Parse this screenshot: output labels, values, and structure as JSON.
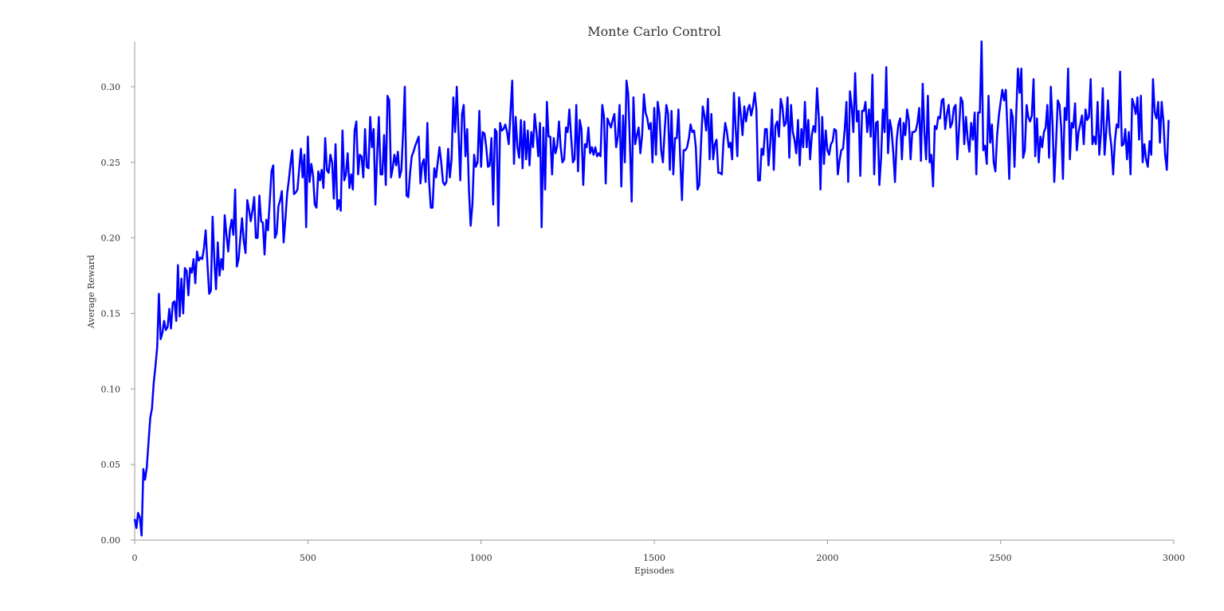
{
  "chart_data": {
    "type": "line",
    "title": "Monte Carlo Control",
    "xlabel": "Episodes",
    "ylabel": "Average Reward",
    "xlim": [
      0,
      3000
    ],
    "ylim": [
      0.0,
      0.33
    ],
    "xticks": [
      0,
      500,
      1000,
      1500,
      2000,
      2500,
      3000
    ],
    "xtick_labels": [
      "0",
      "500",
      "1000",
      "1500",
      "2000",
      "2500",
      "3000"
    ],
    "yticks": [
      0.0,
      0.05,
      0.1,
      0.15,
      0.2,
      0.25,
      0.3
    ],
    "ytick_labels": [
      "0.00",
      "0.05",
      "0.10",
      "0.15",
      "0.20",
      "0.25",
      "0.30"
    ],
    "grid": false,
    "legend": "none",
    "line_color": "#0000ff",
    "axis_color": "#999999",
    "series": [
      {
        "x_start": 0,
        "x_step": 5,
        "values": [
          0.014,
          0.008,
          0.018,
          0.015,
          0.003,
          0.047,
          0.04,
          0.048,
          0.065,
          0.081,
          0.087,
          0.104,
          0.115,
          0.128,
          0.163,
          0.133,
          0.137,
          0.145,
          0.139,
          0.141,
          0.153,
          0.14,
          0.157,
          0.158,
          0.145,
          0.182,
          0.148,
          0.173,
          0.15,
          0.18,
          0.178,
          0.162,
          0.18,
          0.177,
          0.186,
          0.17,
          0.191,
          0.185,
          0.187,
          0.186,
          0.193,
          0.205,
          0.183,
          0.163,
          0.165,
          0.214,
          0.185,
          0.166,
          0.197,
          0.175,
          0.186,
          0.179,
          0.215,
          0.202,
          0.191,
          0.205,
          0.212,
          0.202,
          0.232,
          0.181,
          0.186,
          0.2,
          0.213,
          0.198,
          0.19,
          0.225,
          0.219,
          0.211,
          0.218,
          0.227,
          0.2,
          0.2,
          0.228,
          0.211,
          0.21,
          0.189,
          0.212,
          0.205,
          0.224,
          0.244,
          0.248,
          0.2,
          0.203,
          0.221,
          0.225,
          0.231,
          0.197,
          0.212,
          0.229,
          0.238,
          0.249,
          0.258,
          0.229,
          0.23,
          0.232,
          0.246,
          0.259,
          0.24,
          0.255,
          0.207,
          0.267,
          0.237,
          0.249,
          0.241,
          0.222,
          0.22,
          0.244,
          0.238,
          0.245,
          0.233,
          0.266,
          0.245,
          0.243,
          0.255,
          0.25,
          0.226,
          0.262,
          0.219,
          0.225,
          0.218,
          0.271,
          0.238,
          0.242,
          0.256,
          0.233,
          0.242,
          0.232,
          0.271,
          0.277,
          0.242,
          0.255,
          0.254,
          0.24,
          0.272,
          0.247,
          0.246,
          0.28,
          0.26,
          0.272,
          0.222,
          0.255,
          0.28,
          0.242,
          0.242,
          0.268,
          0.235,
          0.294,
          0.291,
          0.24,
          0.246,
          0.255,
          0.248,
          0.257,
          0.24,
          0.245,
          0.27,
          0.3,
          0.228,
          0.227,
          0.243,
          0.254,
          0.257,
          0.261,
          0.264,
          0.267,
          0.236,
          0.249,
          0.252,
          0.237,
          0.276,
          0.237,
          0.22,
          0.22,
          0.246,
          0.24,
          0.25,
          0.26,
          0.25,
          0.237,
          0.235,
          0.237,
          0.259,
          0.24,
          0.252,
          0.293,
          0.27,
          0.3,
          0.27,
          0.238,
          0.282,
          0.288,
          0.254,
          0.272,
          0.232,
          0.208,
          0.222,
          0.255,
          0.247,
          0.25,
          0.284,
          0.247,
          0.27,
          0.269,
          0.26,
          0.247,
          0.248,
          0.266,
          0.222,
          0.272,
          0.27,
          0.208,
          0.276,
          0.271,
          0.272,
          0.275,
          0.27,
          0.262,
          0.283,
          0.304,
          0.249,
          0.28,
          0.26,
          0.253,
          0.278,
          0.246,
          0.277,
          0.252,
          0.271,
          0.248,
          0.27,
          0.26,
          0.282,
          0.27,
          0.254,
          0.276,
          0.207,
          0.273,
          0.232,
          0.29,
          0.267,
          0.267,
          0.242,
          0.266,
          0.256,
          0.261,
          0.277,
          0.26,
          0.25,
          0.252,
          0.273,
          0.27,
          0.285,
          0.267,
          0.25,
          0.252,
          0.288,
          0.244,
          0.278,
          0.272,
          0.235,
          0.262,
          0.26,
          0.273,
          0.256,
          0.26,
          0.255,
          0.26,
          0.254,
          0.256,
          0.254,
          0.288,
          0.28,
          0.236,
          0.279,
          0.276,
          0.273,
          0.278,
          0.282,
          0.26,
          0.267,
          0.288,
          0.234,
          0.281,
          0.25,
          0.304,
          0.295,
          0.26,
          0.224,
          0.293,
          0.262,
          0.268,
          0.273,
          0.256,
          0.268,
          0.295,
          0.283,
          0.279,
          0.272,
          0.276,
          0.25,
          0.286,
          0.255,
          0.29,
          0.282,
          0.258,
          0.25,
          0.27,
          0.288,
          0.282,
          0.245,
          0.284,
          0.242,
          0.266,
          0.266,
          0.285,
          0.253,
          0.225,
          0.258,
          0.258,
          0.26,
          0.266,
          0.275,
          0.27,
          0.271,
          0.26,
          0.232,
          0.235,
          0.262,
          0.287,
          0.281,
          0.271,
          0.292,
          0.252,
          0.282,
          0.252,
          0.262,
          0.265,
          0.243,
          0.243,
          0.242,
          0.264,
          0.276,
          0.27,
          0.26,
          0.263,
          0.252,
          0.296,
          0.273,
          0.254,
          0.293,
          0.281,
          0.268,
          0.287,
          0.277,
          0.285,
          0.288,
          0.281,
          0.287,
          0.296,
          0.285,
          0.238,
          0.238,
          0.259,
          0.255,
          0.272,
          0.272,
          0.248,
          0.262,
          0.285,
          0.245,
          0.274,
          0.277,
          0.267,
          0.292,
          0.287,
          0.274,
          0.276,
          0.293,
          0.253,
          0.288,
          0.27,
          0.265,
          0.256,
          0.278,
          0.248,
          0.272,
          0.26,
          0.29,
          0.26,
          0.278,
          0.252,
          0.268,
          0.274,
          0.27,
          0.299,
          0.28,
          0.232,
          0.28,
          0.249,
          0.271,
          0.258,
          0.255,
          0.262,
          0.264,
          0.272,
          0.271,
          0.242,
          0.251,
          0.258,
          0.259,
          0.272,
          0.29,
          0.237,
          0.297,
          0.287,
          0.27,
          0.309,
          0.277,
          0.284,
          0.241,
          0.284,
          0.284,
          0.29,
          0.27,
          0.285,
          0.267,
          0.308,
          0.242,
          0.276,
          0.277,
          0.235,
          0.253,
          0.285,
          0.27,
          0.313,
          0.256,
          0.278,
          0.272,
          0.257,
          0.237,
          0.265,
          0.275,
          0.279,
          0.252,
          0.276,
          0.268,
          0.285,
          0.278,
          0.252,
          0.27,
          0.27,
          0.271,
          0.276,
          0.286,
          0.251,
          0.302,
          0.27,
          0.252,
          0.294,
          0.25,
          0.255,
          0.234,
          0.274,
          0.272,
          0.28,
          0.279,
          0.291,
          0.292,
          0.272,
          0.282,
          0.288,
          0.273,
          0.276,
          0.286,
          0.288,
          0.252,
          0.272,
          0.293,
          0.29,
          0.262,
          0.28,
          0.265,
          0.257,
          0.276,
          0.265,
          0.283,
          0.242,
          0.283,
          0.283,
          0.33,
          0.258,
          0.261,
          0.249,
          0.294,
          0.263,
          0.275,
          0.25,
          0.244,
          0.268,
          0.281,
          0.29,
          0.298,
          0.291,
          0.298,
          0.27,
          0.239,
          0.285,
          0.28,
          0.247,
          0.281,
          0.312,
          0.296,
          0.312,
          0.253,
          0.258,
          0.288,
          0.28,
          0.277,
          0.281,
          0.305,
          0.254,
          0.279,
          0.25,
          0.267,
          0.26,
          0.27,
          0.273,
          0.288,
          0.253,
          0.3,
          0.275,
          0.237,
          0.262,
          0.291,
          0.288,
          0.273,
          0.239,
          0.286,
          0.278,
          0.312,
          0.252,
          0.276,
          0.273,
          0.289,
          0.258,
          0.27,
          0.275,
          0.281,
          0.262,
          0.285,
          0.278,
          0.28,
          0.305,
          0.262,
          0.267,
          0.262,
          0.29,
          0.255,
          0.27,
          0.299,
          0.255,
          0.27,
          0.291,
          0.27,
          0.26,
          0.242,
          0.264,
          0.275,
          0.273,
          0.31,
          0.261,
          0.262,
          0.272,
          0.252,
          0.27,
          0.242,
          0.292,
          0.288,
          0.282,
          0.293,
          0.265,
          0.294,
          0.25,
          0.262,
          0.252,
          0.247,
          0.264,
          0.255,
          0.305,
          0.283,
          0.279,
          0.29,
          0.263,
          0.29,
          0.277,
          0.255,
          0.245,
          0.278
        ]
      }
    ]
  }
}
